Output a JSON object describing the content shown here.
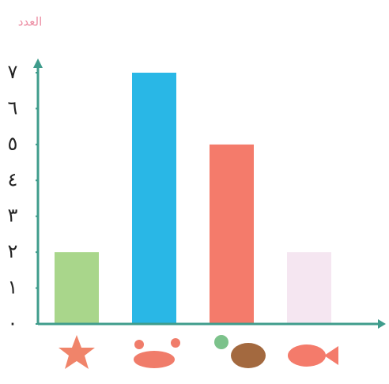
{
  "chart_data": {
    "type": "bar",
    "title": "العدد",
    "categories": [
      null,
      null,
      null,
      null
    ],
    "values": [
      2,
      7,
      5,
      2
    ],
    "colors": [
      "#a9d68b",
      "#29b7e6",
      "#f47b6b",
      "#f5e6f1"
    ],
    "ylim": [
      0,
      7
    ],
    "yticks": [
      {
        "value": 0,
        "label": "٠"
      },
      {
        "value": 1,
        "label": "١"
      },
      {
        "value": 2,
        "label": "٢"
      },
      {
        "value": 3,
        "label": "٣"
      },
      {
        "value": 4,
        "label": "٤"
      },
      {
        "value": 5,
        "label": "٥"
      },
      {
        "value": 6,
        "label": "٦"
      },
      {
        "value": 7,
        "label": "٧"
      }
    ],
    "axis_color": "#3f9c8c"
  }
}
